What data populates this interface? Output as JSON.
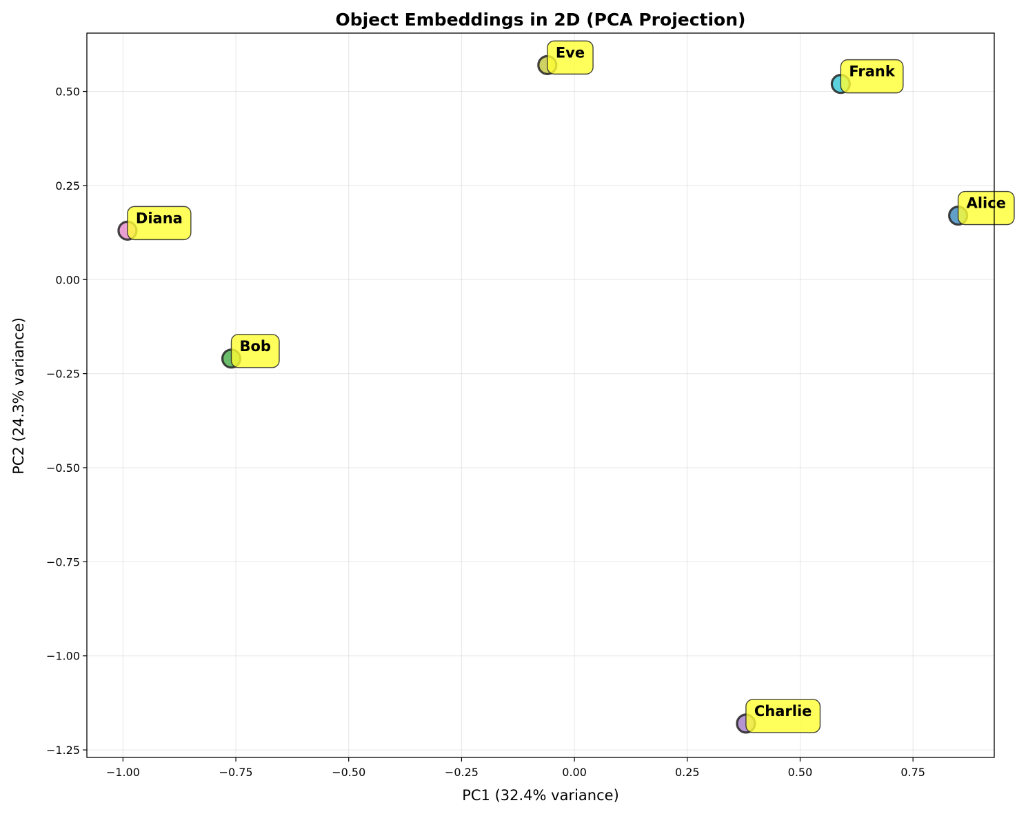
{
  "chart_data": {
    "type": "scatter",
    "title": "Object Embeddings in 2D (PCA Projection)",
    "xlabel": "PC1 (32.4% variance)",
    "ylabel": "PC2 (24.3% variance)",
    "xlim": [
      -1.08,
      0.93
    ],
    "ylim": [
      -1.27,
      0.655
    ],
    "xticks": [
      -1.0,
      -0.75,
      -0.5,
      -0.25,
      0.0,
      0.25,
      0.5,
      0.75
    ],
    "xtick_labels": [
      "−1.00",
      "−0.75",
      "−0.50",
      "−0.25",
      "0.00",
      "0.25",
      "0.50",
      "0.75"
    ],
    "yticks": [
      0.5,
      0.25,
      0.0,
      -0.25,
      -0.5,
      -0.75,
      -1.0,
      -1.25
    ],
    "ytick_labels": [
      "0.50",
      "0.25",
      "0.00",
      "−0.25",
      "−0.50",
      "−0.75",
      "−1.00",
      "−1.25"
    ],
    "grid": true,
    "label_box_color": "#ffff33",
    "points": [
      {
        "label": "Alice",
        "x": 0.85,
        "y": 0.17,
        "color": "#1f77b4"
      },
      {
        "label": "Bob",
        "x": -0.76,
        "y": -0.21,
        "color": "#2ca02c"
      },
      {
        "label": "Charlie",
        "x": 0.38,
        "y": -1.18,
        "color": "#9467bd"
      },
      {
        "label": "Diana",
        "x": -0.99,
        "y": 0.13,
        "color": "#e377c2"
      },
      {
        "label": "Eve",
        "x": -0.06,
        "y": 0.57,
        "color": "#bcbd22"
      },
      {
        "label": "Frank",
        "x": 0.59,
        "y": 0.52,
        "color": "#17becf"
      }
    ]
  }
}
